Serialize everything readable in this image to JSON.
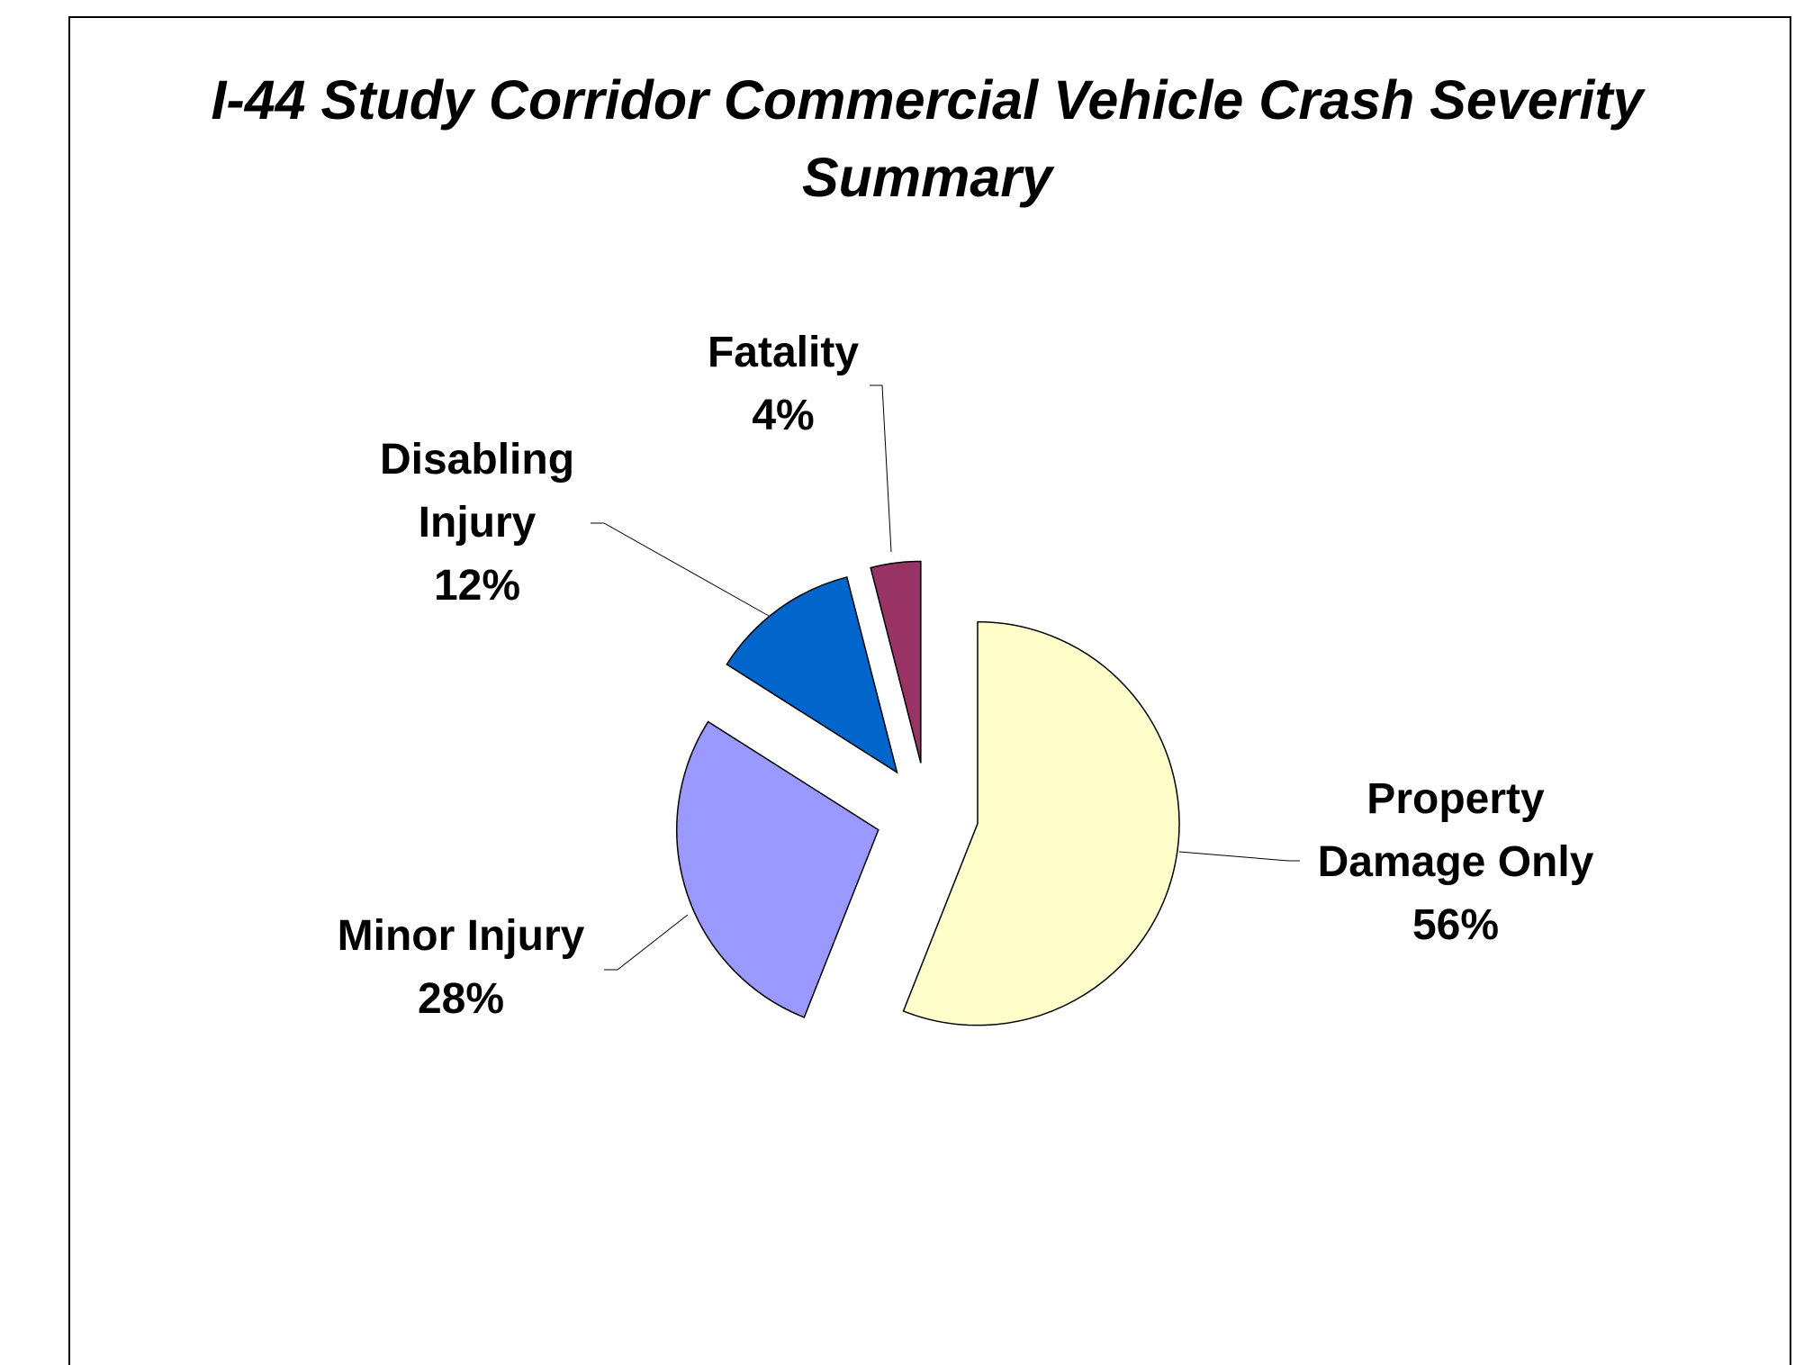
{
  "chart_data": {
    "type": "pie",
    "title": "I-44 Study Corridor Commercial Vehicle Crash Severity Summary",
    "categories": [
      "Property Damage Only",
      "Minor Injury",
      "Disabling Injury",
      "Fatality"
    ],
    "values": [
      56,
      28,
      12,
      4
    ],
    "value_labels": [
      "56%",
      "28%",
      "12%",
      "4%"
    ],
    "colors": [
      "#ffffcc",
      "#9999ff",
      "#0066cc",
      "#993366"
    ]
  }
}
